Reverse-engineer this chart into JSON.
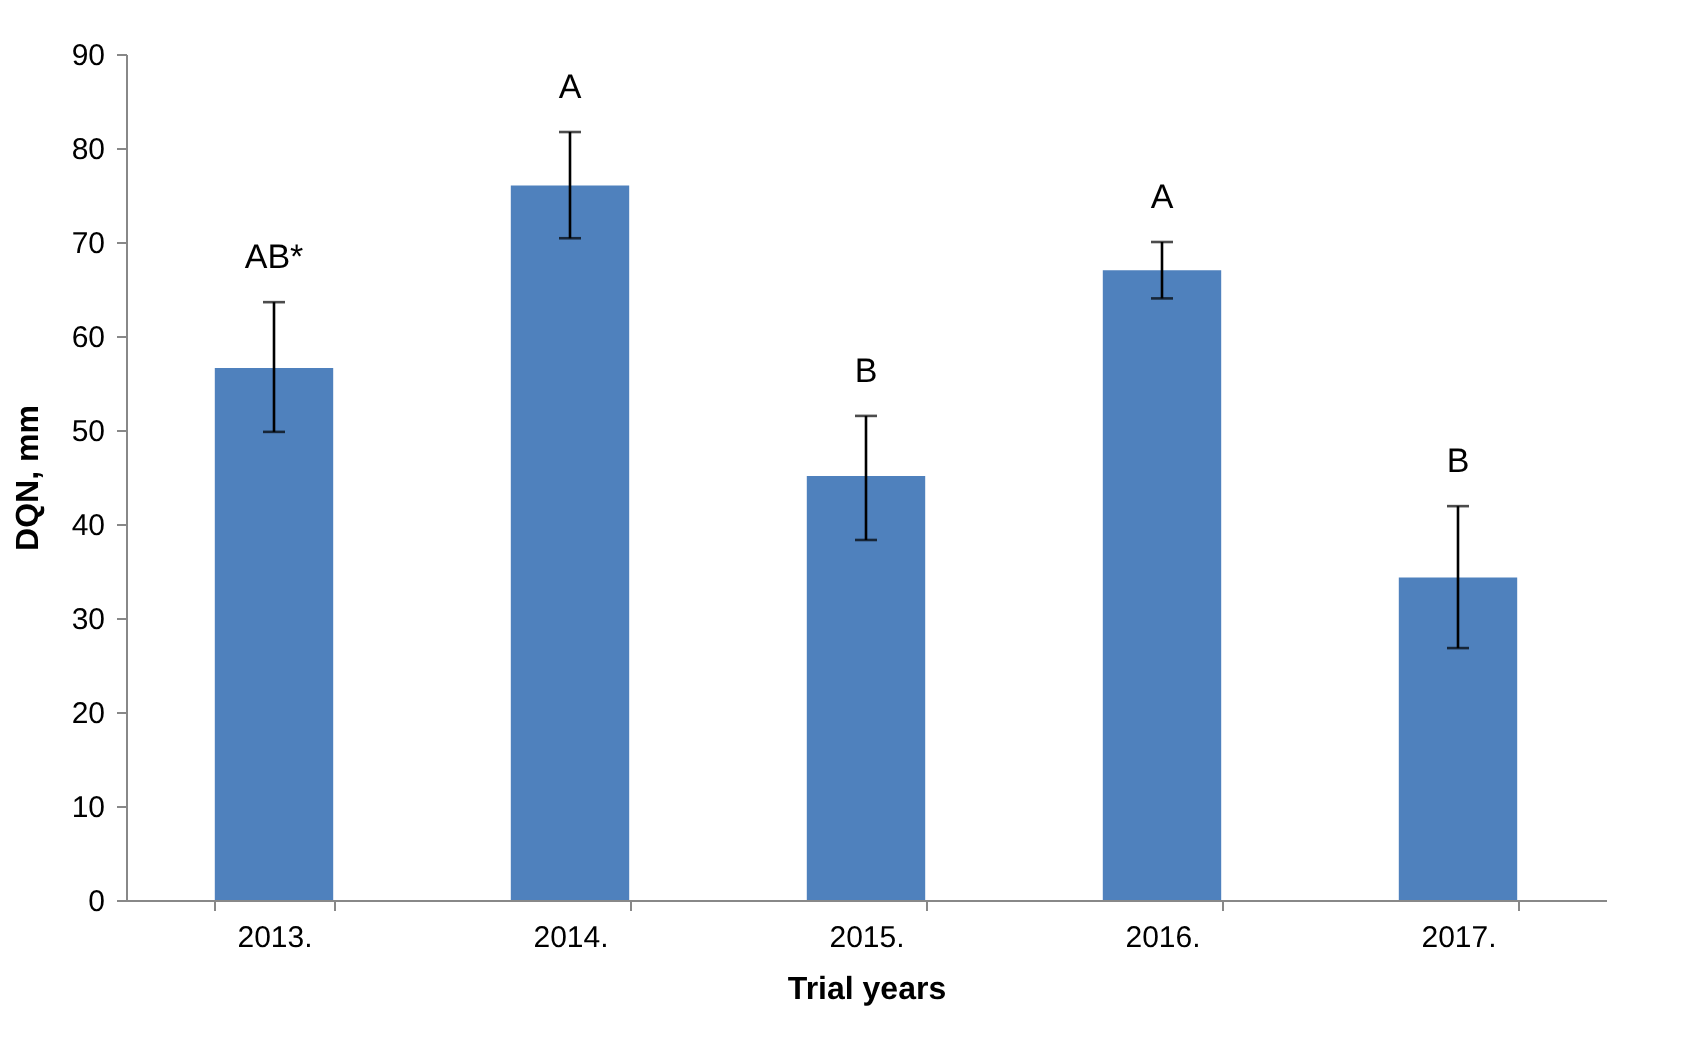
{
  "chart_data": {
    "type": "bar",
    "xlabel": "Trial years",
    "ylabel": "DQN, mm",
    "categories": [
      "2013.",
      "2014.",
      "2015.",
      "2016.",
      "2017."
    ],
    "values": [
      56.6,
      76.0,
      45.1,
      67.0,
      34.3
    ],
    "errors": [
      [
        49.8,
        63.6
      ],
      [
        70.4,
        81.7
      ],
      [
        38.3,
        51.5
      ],
      [
        64.0,
        70.0
      ],
      [
        26.8,
        41.9
      ]
    ],
    "color": "#4f81bd",
    "ylim": [
      0,
      90
    ],
    "yticks": [
      0,
      10,
      20,
      30,
      40,
      50,
      60,
      70,
      80,
      90
    ],
    "grid": false,
    "annotations": [
      {
        "text": "AB*",
        "x": "2013.",
        "y": 63.6
      },
      {
        "text": "A",
        "x": "2014.",
        "y": 81.7
      },
      {
        "text": "B",
        "x": "2015.",
        "y": 51.5
      },
      {
        "text": "A",
        "x": "2016.",
        "y": 70.0
      },
      {
        "text": "B",
        "x": "2017.",
        "y": 41.9
      }
    ]
  }
}
